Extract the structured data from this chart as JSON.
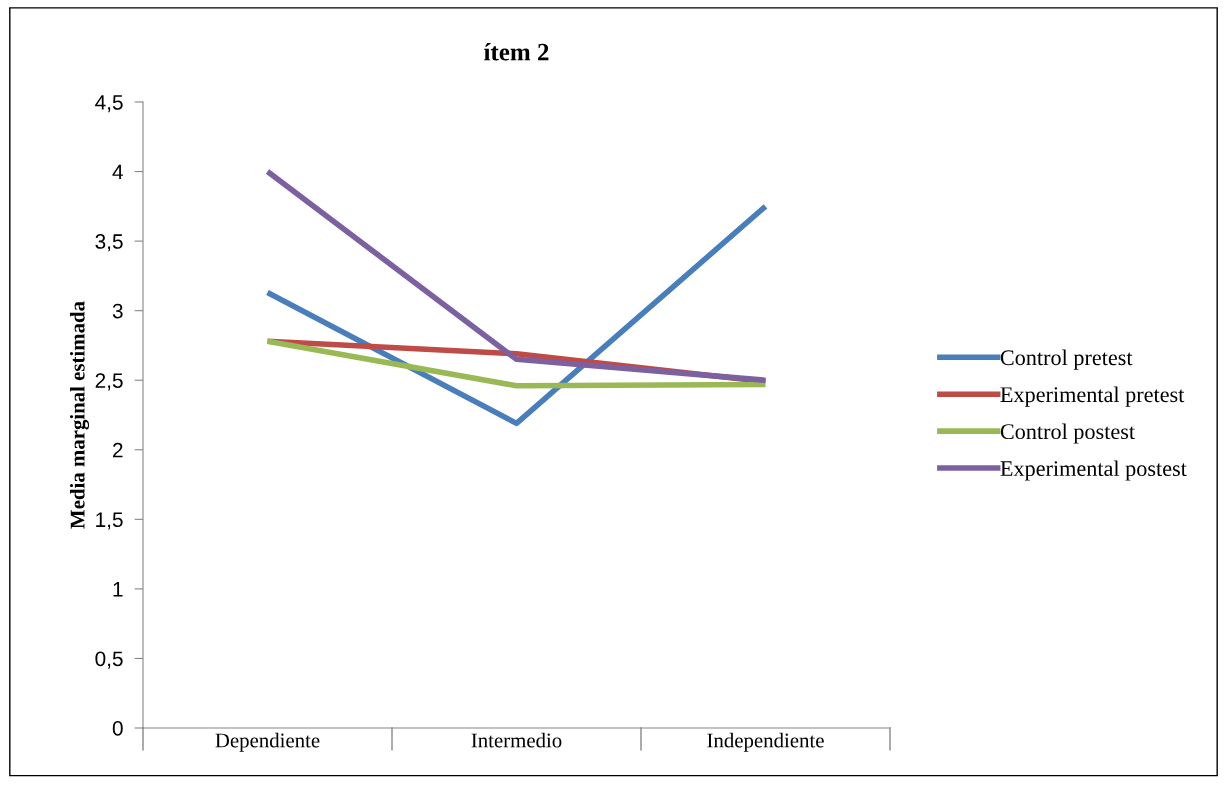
{
  "chart_data": {
    "type": "line",
    "title": "ítem 2",
    "ylabel": "Media marginal estimada",
    "categories": [
      "Dependiente",
      "Intermedio",
      "Independiente"
    ],
    "series": [
      {
        "name": "Control pretest",
        "color": "#4a7ebb",
        "values": [
          3.13,
          2.19,
          3.75
        ]
      },
      {
        "name": "Experimental pretest",
        "color": "#be4b48",
        "values": [
          2.78,
          2.69,
          2.49
        ]
      },
      {
        "name": "Control postest",
        "color": "#98b954",
        "values": [
          2.78,
          2.46,
          2.47
        ]
      },
      {
        "name": "Experimental postest",
        "color": "#7d60a0",
        "values": [
          4.0,
          2.65,
          2.5
        ]
      }
    ],
    "ylim": [
      0,
      4.5
    ],
    "yticks": [
      0,
      {
        "value": 0.5,
        "label": "0,5"
      },
      1,
      {
        "value": 1.5,
        "label": "1,5"
      },
      2,
      {
        "value": 2.5,
        "label": "2,5"
      },
      3,
      {
        "value": 3.5,
        "label": "3,5"
      },
      4,
      {
        "value": 4.5,
        "label": "4,5"
      }
    ],
    "grid": false,
    "legend": "right",
    "marker": "none",
    "line_style": "solid"
  }
}
